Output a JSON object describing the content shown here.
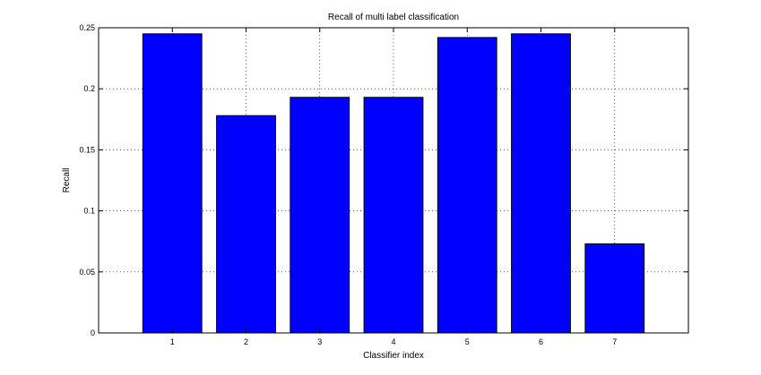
{
  "chart_data": {
    "type": "bar",
    "title": "Recall of multi label classification",
    "xlabel": "Classifier index",
    "ylabel": "Recall",
    "categories": [
      "1",
      "2",
      "3",
      "4",
      "5",
      "6",
      "7"
    ],
    "values": [
      0.245,
      0.178,
      0.193,
      0.193,
      0.242,
      0.245,
      0.073
    ],
    "ylim": [
      0,
      0.25
    ],
    "xlim": [
      0,
      8
    ],
    "yticks": [
      "0",
      "0.05",
      "0.1",
      "0.15",
      "0.2",
      "0.25"
    ],
    "grid": true,
    "bar_color": "#0000ff",
    "bar_edge_color": "#000000"
  }
}
